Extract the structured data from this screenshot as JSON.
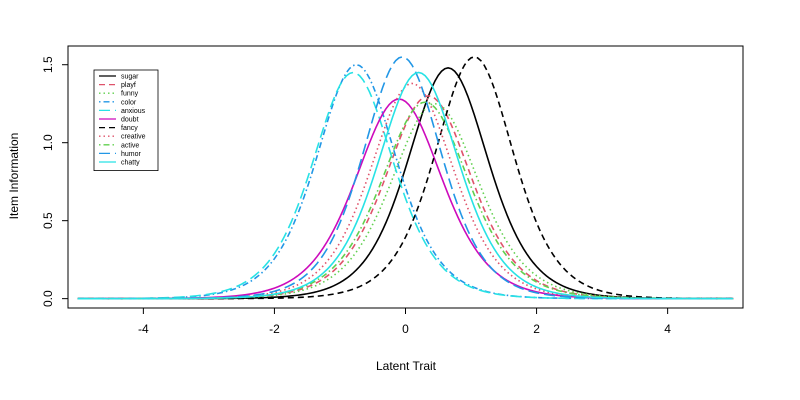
{
  "chart_data": {
    "type": "line",
    "title": "",
    "xlabel": "Latent Trait",
    "ylabel": "Item Information",
    "xlim": [
      -5,
      5
    ],
    "ylim": [
      0,
      1.6
    ],
    "xticks": [
      -4,
      -2,
      0,
      2,
      4
    ],
    "yticks": [
      0.0,
      0.5,
      1.0,
      1.5
    ],
    "ytick_labels": [
      "0.0",
      "0.5",
      "1.0",
      "1.5"
    ],
    "grid": false,
    "legend_position": "top-left",
    "series": [
      {
        "name": "sugar",
        "color": "#000000",
        "dash": "solid",
        "peak_x": 0.65,
        "peak_y": 1.48
      },
      {
        "name": "playf",
        "color": "#df536b",
        "dash": "dashed",
        "peak_x": 0.35,
        "peak_y": 1.3
      },
      {
        "name": "funny",
        "color": "#61d04f",
        "dash": "dotted",
        "peak_x": 0.45,
        "peak_y": 1.25
      },
      {
        "name": "color",
        "color": "#2297e6",
        "dash": "dotdash",
        "peak_x": -0.75,
        "peak_y": 1.5
      },
      {
        "name": "anxious",
        "color": "#28e2e5",
        "dash": "longdash",
        "peak_x": -0.8,
        "peak_y": 1.45
      },
      {
        "name": "doubt",
        "color": "#cd0bbc",
        "dash": "solid",
        "peak_x": -0.1,
        "peak_y": 1.28
      },
      {
        "name": "fancy",
        "color": "#000000",
        "dash": "dashed",
        "peak_x": 1.05,
        "peak_y": 1.55
      },
      {
        "name": "creative",
        "color": "#df536b",
        "dash": "dotted",
        "peak_x": 0.1,
        "peak_y": 1.38
      },
      {
        "name": "active",
        "color": "#61d04f",
        "dash": "dotdash",
        "peak_x": 0.3,
        "peak_y": 1.26
      },
      {
        "name": "humor",
        "color": "#2297e6",
        "dash": "longdash",
        "peak_x": -0.05,
        "peak_y": 1.55
      },
      {
        "name": "chatty",
        "color": "#28e2e5",
        "dash": "solid",
        "peak_x": 0.2,
        "peak_y": 1.45
      }
    ]
  }
}
